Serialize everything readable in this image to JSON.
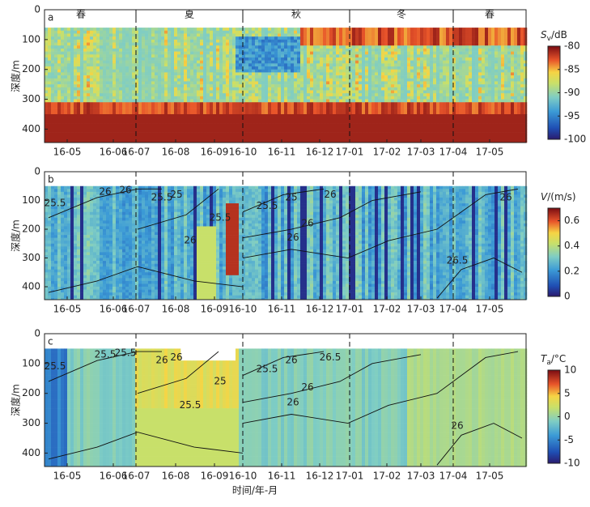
{
  "chart_data": {
    "type": "heatmap",
    "x_axis_label": "时间/年-月",
    "y_axis_label": "深度/m",
    "x_tick_labels": [
      "16-05",
      "16-06",
      "16-07",
      "16-08",
      "16-09",
      "16-10",
      "16-11",
      "16-12",
      "17-01",
      "17-02",
      "17-03",
      "17-04",
      "17-05"
    ],
    "seasons": [
      "春",
      "夏",
      "秋",
      "冬",
      "春"
    ],
    "ylim": [
      0,
      445
    ],
    "yticks": [
      0,
      100,
      200,
      300,
      400
    ],
    "panels": [
      {
        "letter": "a",
        "colorbar": {
          "symbol": "S",
          "subscript": "v",
          "unit": "/dB",
          "lim": [
            -100,
            -80
          ],
          "ticks": [
            -80,
            -85,
            -90,
            -95,
            -100
          ]
        }
      },
      {
        "letter": "b",
        "colorbar": {
          "symbol": "V",
          "subscript": "",
          "unit": "/(m/s)",
          "lim": [
            0,
            0.7
          ],
          "ticks": [
            0.6,
            0.4,
            0.2,
            0
          ]
        },
        "contour_labels": [
          "25.5",
          "26",
          "26",
          "25.5",
          "25",
          "26",
          "25.5",
          "25.5",
          "25",
          "26",
          "26",
          "26",
          "26.5",
          "26"
        ]
      },
      {
        "letter": "c",
        "colorbar": {
          "symbol": "T",
          "subscript": "a",
          "unit": "/°C",
          "lim": [
            -10,
            10
          ],
          "ticks": [
            10,
            5,
            0,
            -5,
            -10
          ]
        },
        "contour_labels": [
          "25.5",
          "25.5",
          "25.5",
          "26",
          "26",
          "25.5",
          "25",
          "25.5",
          "26",
          "26",
          "26",
          "26.5",
          "26"
        ]
      }
    ]
  }
}
